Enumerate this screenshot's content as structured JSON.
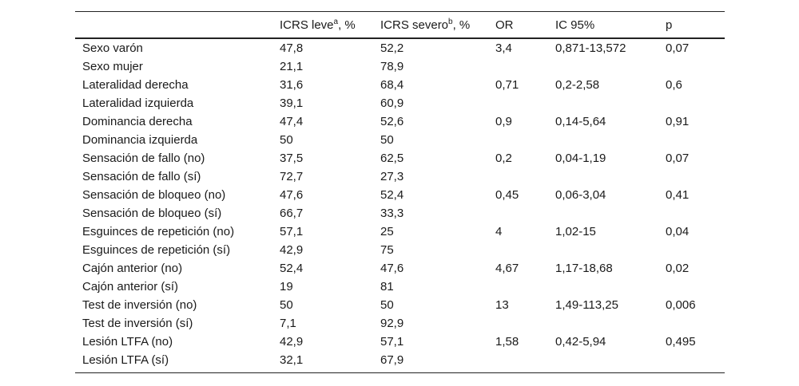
{
  "table": {
    "headers": {
      "col1_main": "ICRS leve",
      "col1_sup": "a",
      "col1_tail": ", %",
      "col2_main": "ICRS severo",
      "col2_sup": "b",
      "col2_tail": ", %",
      "col3": "OR",
      "col4": "IC 95%",
      "col5": "p"
    },
    "rows": [
      [
        "Sexo varón",
        "47,8",
        "52,2",
        "3,4",
        "0,871-13,572",
        "0,07"
      ],
      [
        "Sexo mujer",
        "21,1",
        "78,9",
        "",
        "",
        ""
      ],
      [
        "Lateralidad derecha",
        "31,6",
        "68,4",
        "0,71",
        "0,2-2,58",
        "0,6"
      ],
      [
        "Lateralidad izquierda",
        "39,1",
        "60,9",
        "",
        "",
        ""
      ],
      [
        "Dominancia derecha",
        "47,4",
        "52,6",
        "0,9",
        "0,14-5,64",
        "0,91"
      ],
      [
        "Dominancia izquierda",
        "50",
        "50",
        "",
        "",
        ""
      ],
      [
        "Sensación de fallo (no)",
        "37,5",
        "62,5",
        "0,2",
        "0,04-1,19",
        "0,07"
      ],
      [
        "Sensación de fallo (sí)",
        "72,7",
        "27,3",
        "",
        "",
        ""
      ],
      [
        "Sensación de bloqueo (no)",
        "47,6",
        "52,4",
        "0,45",
        "0,06-3,04",
        "0,41"
      ],
      [
        "Sensación de bloqueo (sí)",
        "66,7",
        "33,3",
        "",
        "",
        ""
      ],
      [
        "Esguinces de repetición (no)",
        "57,1",
        "25",
        "4",
        "1,02-15",
        "0,04"
      ],
      [
        "Esguinces de repetición (sí)",
        "42,9",
        "75",
        "",
        "",
        ""
      ],
      [
        "Cajón anterior (no)",
        "52,4",
        "47,6",
        "4,67",
        "1,17-18,68",
        "0,02"
      ],
      [
        "Cajón anterior (sí)",
        "19",
        "81",
        "",
        "",
        ""
      ],
      [
        "Test de inversión (no)",
        "50",
        "50",
        "13",
        "1,49-113,25",
        "0,006"
      ],
      [
        "Test de inversión (sí)",
        "7,1",
        "92,9",
        "",
        "",
        ""
      ],
      [
        "Lesión LTFA (no)",
        "42,9",
        "57,1",
        "1,58",
        "0,42-5,94",
        "0,495"
      ],
      [
        "Lesión LTFA (sí)",
        "32,1",
        "67,9",
        "",
        "",
        ""
      ]
    ]
  }
}
